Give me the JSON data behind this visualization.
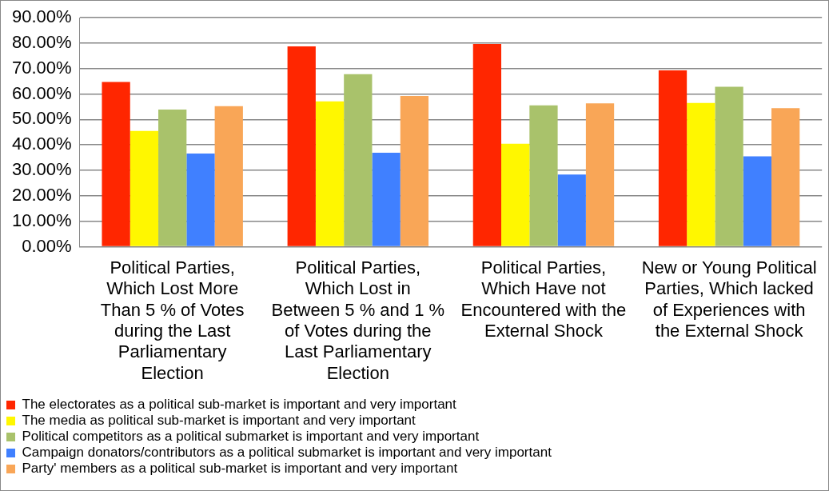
{
  "chart_data": {
    "type": "bar",
    "categories": [
      "Political Parties, Which Lost More Than 5 % of Votes during the Last Parliamentary Election",
      "Political Parties, Which Lost in Between 5 % and 1 % of Votes during the Last Parliamentary Election",
      "Political Parties, Which Have not Encountered with the External Shock",
      "New or Young Political Parties, Which lacked of Experiences with the External Shock"
    ],
    "series": [
      {
        "name": "The electorates as a political sub-market is important and very important",
        "color": "#ff2600",
        "values": [
          64.7,
          78.7,
          79.6,
          69.3
        ]
      },
      {
        "name": "The media as political sub-market is important and very important",
        "color": "#fff700",
        "values": [
          45.5,
          57.1,
          40.5,
          56.5
        ]
      },
      {
        "name": "Political competitors as a political submarket is important and very important",
        "color": "#a9c26b",
        "values": [
          53.9,
          67.8,
          55.5,
          62.8
        ]
      },
      {
        "name": "Campaign donators/contributors as a political submarket is important and very important",
        "color": "#4080ff",
        "values": [
          36.6,
          36.9,
          28.4,
          35.5
        ]
      },
      {
        "name": "Party' members as a political sub-market is important and very important",
        "color": "#f9a657",
        "values": [
          55.2,
          59.2,
          56.3,
          54.4
        ]
      }
    ],
    "ylim": [
      0,
      90
    ],
    "yticks": [
      {
        "value": 0,
        "label": "0.00%"
      },
      {
        "value": 10,
        "label": "10.00%"
      },
      {
        "value": 20,
        "label": "20.00%"
      },
      {
        "value": 30,
        "label": "30.00%"
      },
      {
        "value": 40,
        "label": "40.00%"
      },
      {
        "value": 50,
        "label": "50.00%"
      },
      {
        "value": 60,
        "label": "60.00%"
      },
      {
        "value": 70,
        "label": "70.00%"
      },
      {
        "value": 80,
        "label": "80.00%"
      },
      {
        "value": 90,
        "label": "90.00%"
      }
    ],
    "grid": "y",
    "legend": "bottom"
  }
}
